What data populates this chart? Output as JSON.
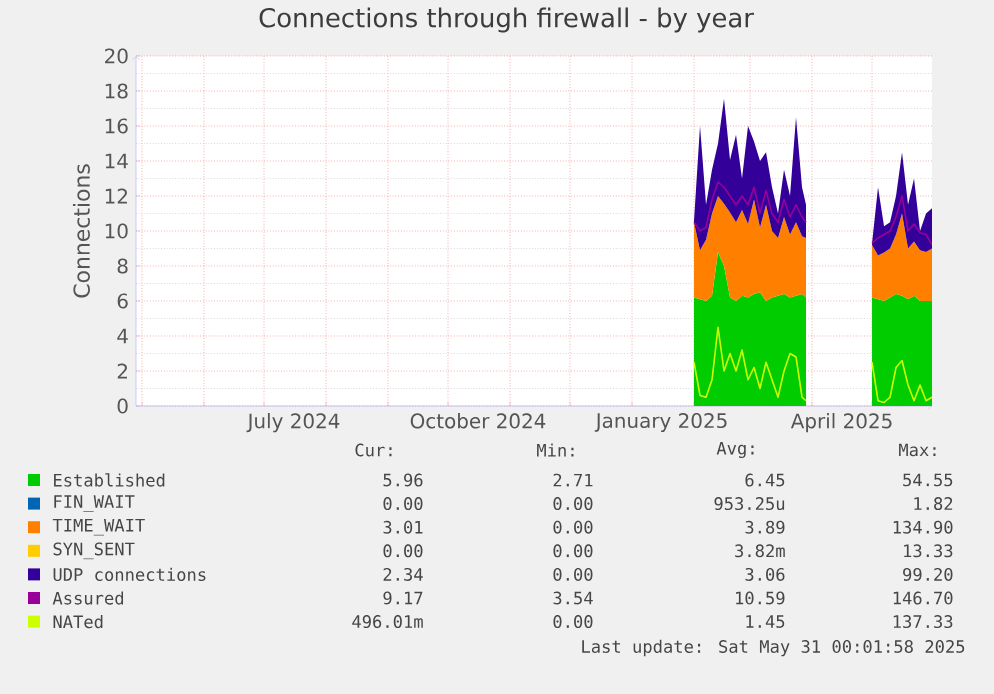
{
  "chart_data": {
    "type": "area",
    "stacked": true,
    "title": "Connections through firewall - by year",
    "ylabel": "Connections",
    "x": [
      "2025-02-01",
      "2025-02-04",
      "2025-02-07",
      "2025-02-10",
      "2025-02-13",
      "2025-02-16",
      "2025-02-19",
      "2025-02-22",
      "2025-02-25",
      "2025-02-28",
      "2025-03-03",
      "2025-03-06",
      "2025-03-09",
      "2025-03-12",
      "2025-03-15",
      "2025-03-18",
      "2025-03-21",
      "2025-03-24",
      "2025-03-27",
      "2025-03-29",
      "2025-04-15",
      "2025-05-01",
      "2025-05-04",
      "2025-05-07",
      "2025-05-10",
      "2025-05-13",
      "2025-05-16",
      "2025-05-19",
      "2025-05-22",
      "2025-05-25",
      "2025-05-28",
      "2025-05-31"
    ],
    "series": [
      {
        "name": "Established",
        "color": "#00cc00",
        "values": [
          6.2,
          6.1,
          6.0,
          6.3,
          8.8,
          8.0,
          6.2,
          6.0,
          6.3,
          6.2,
          6.4,
          6.5,
          6.0,
          6.2,
          6.3,
          6.4,
          6.2,
          6.3,
          6.4,
          6.2,
          null,
          6.2,
          6.1,
          6.0,
          6.2,
          6.4,
          6.3,
          6.1,
          6.3,
          6.0,
          6.0,
          6.0
        ]
      },
      {
        "name": "FIN_WAIT",
        "color": "#0066b3",
        "values": [
          null,
          null,
          null,
          null,
          null,
          null,
          null,
          null,
          null,
          null,
          null,
          null,
          null,
          null,
          null,
          null,
          null,
          null,
          null,
          null,
          null,
          null,
          null,
          null,
          null,
          null,
          null,
          null,
          null,
          null,
          null,
          null
        ]
      },
      {
        "name": "TIME_WAIT",
        "color": "#ff8000",
        "values": [
          4.3,
          2.8,
          3.5,
          4.7,
          3.2,
          3.56,
          4.86,
          4.5,
          4.9,
          4.2,
          5.4,
          3.7,
          5.5,
          3.8,
          3.3,
          4.4,
          3.6,
          4.2,
          3.3,
          3.4,
          null,
          3.0,
          2.5,
          2.77,
          2.8,
          3.4,
          4.7,
          2.9,
          3.1,
          2.9,
          2.8,
          3.0
        ]
      },
      {
        "name": "SYN_SENT",
        "color": "#ffcc00",
        "values": [
          null,
          null,
          null,
          null,
          null,
          null,
          null,
          null,
          null,
          null,
          null,
          null,
          null,
          null,
          null,
          null,
          null,
          null,
          null,
          null,
          null,
          null,
          null,
          null,
          null,
          null,
          null,
          null,
          null,
          null,
          null,
          null
        ]
      },
      {
        "name": "UDP connections",
        "color": "#330099",
        "values": [
          0.1,
          7.1,
          2.0,
          2.5,
          3.0,
          6.0,
          3.0,
          5.0,
          1.8,
          5.6,
          3.32,
          3.8,
          3.0,
          2.5,
          1.4,
          2.7,
          2.2,
          6.0,
          2.8,
          1.9,
          null,
          0.1,
          3.9,
          1.5,
          1.5,
          2.2,
          3.5,
          2.5,
          3.6,
          1.1,
          2.2,
          2.3
        ]
      },
      {
        "name": "Assured",
        "type": "line",
        "color": "#990099",
        "values": [
          10.5,
          10.0,
          10.2,
          11.8,
          12.8,
          12.5,
          12.0,
          11.5,
          12.0,
          11.5,
          12.5,
          11.0,
          12.3,
          11.0,
          10.5,
          11.8,
          10.8,
          11.5,
          10.8,
          10.5,
          null,
          9.3,
          9.6,
          9.8,
          10.0,
          10.8,
          12.0,
          10.0,
          10.4,
          9.9,
          9.8,
          9.2
        ]
      },
      {
        "name": "NATed",
        "type": "line",
        "color": "#ccff00",
        "values": [
          2.5,
          0.6,
          0.5,
          1.5,
          4.5,
          2.0,
          3.0,
          2.0,
          3.2,
          1.5,
          2.2,
          1.0,
          2.5,
          1.5,
          0.5,
          2.0,
          3.0,
          2.8,
          0.5,
          0.3,
          null,
          2.5,
          0.3,
          0.2,
          0.5,
          2.2,
          2.6,
          1.2,
          0.3,
          1.2,
          0.3,
          0.5
        ]
      }
    ],
    "xlim": [
      "2024-04-28",
      "2025-05-31"
    ],
    "xticks": [
      {
        "value": "2024-05-01",
        "label": null
      },
      {
        "value": "2024-06-01",
        "label": null
      },
      {
        "value": "2024-07-01",
        "label": null
      },
      {
        "value": "2024-08-01",
        "label": null
      },
      {
        "value": "2024-09-01",
        "label": null
      },
      {
        "value": "2024-10-01",
        "label": null
      },
      {
        "value": "2024-11-01",
        "label": null
      },
      {
        "value": "2024-12-01",
        "label": null
      },
      {
        "value": "2025-01-01",
        "label": null
      },
      {
        "value": "2025-02-01",
        "label": null
      },
      {
        "value": "2025-03-01",
        "label": null
      },
      {
        "value": "2025-04-01",
        "label": null
      },
      {
        "value": "2025-05-01",
        "label": null
      },
      {
        "value": "2024-07-16",
        "label": "July 2024"
      },
      {
        "value": "2024-10-16",
        "label": "October 2024"
      },
      {
        "value": "2025-01-16",
        "label": "January 2025"
      },
      {
        "value": "2025-04-16",
        "label": "April 2025"
      }
    ],
    "ylim": [
      0,
      20
    ],
    "yticks": [
      0,
      2,
      4,
      6,
      8,
      10,
      12,
      14,
      16,
      18,
      20
    ],
    "grid": true,
    "legend": "bottom",
    "annotations": [
      "Cur:",
      "Min:",
      "Avg:",
      "Max:",
      "5.96",
      "2.71",
      "6.45",
      "54.55",
      "0.00",
      "0.00",
      "953.25u",
      "1.82",
      "3.01",
      "0.00",
      "3.89",
      "134.90",
      "0.00",
      "0.00",
      "3.82m",
      "13.33",
      "2.34",
      "0.00",
      "3.06",
      "99.20",
      "9.17",
      "3.54",
      "10.59",
      "146.70",
      "496.01m",
      "0.00",
      "1.45",
      "137.33",
      "Last update: Sat May 31 00:01:58 2025"
    ]
  }
}
